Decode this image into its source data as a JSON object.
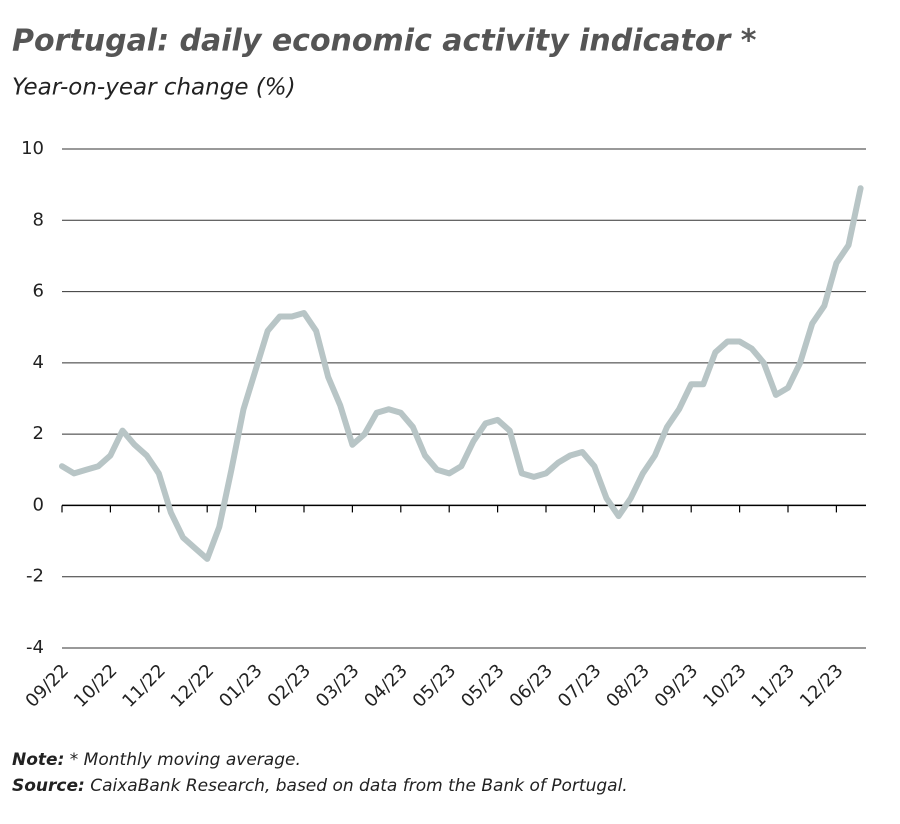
{
  "chart_data": {
    "type": "line",
    "title": "Portugal: daily economic activity indicator *",
    "subtitle": "Year-on-year change (%)",
    "categories": [
      "09/22",
      null,
      null,
      null,
      "10/22",
      null,
      null,
      null,
      "11/22",
      null,
      null,
      null,
      "12/22",
      null,
      null,
      null,
      "01/23",
      null,
      null,
      null,
      "02/23",
      null,
      null,
      null,
      "03/23",
      null,
      null,
      null,
      "04/23",
      null,
      null,
      null,
      "05/23",
      null,
      null,
      null,
      "05/23",
      null,
      null,
      null,
      "06/23",
      null,
      null,
      null,
      "07/23",
      null,
      null,
      null,
      "08/23",
      null,
      null,
      null,
      "09/23",
      null,
      null,
      null,
      "10/23",
      null,
      null,
      null,
      "11/23",
      null,
      null,
      null,
      "12/23",
      null,
      null
    ],
    "series": [
      {
        "color": "#b8c5c6",
        "values": [
          1.1,
          0.9,
          1.0,
          1.1,
          1.4,
          2.1,
          1.7,
          1.4,
          0.9,
          -0.2,
          -0.9,
          -1.2,
          -1.5,
          -0.6,
          1.0,
          2.7,
          3.8,
          4.9,
          5.3,
          5.3,
          5.4,
          4.9,
          3.6,
          2.8,
          1.7,
          2.0,
          2.6,
          2.7,
          2.6,
          2.2,
          1.4,
          1.0,
          0.9,
          1.1,
          1.8,
          2.3,
          2.4,
          2.1,
          0.9,
          0.8,
          0.9,
          1.2,
          1.4,
          1.5,
          1.1,
          0.2,
          -0.3,
          0.2,
          0.9,
          1.4,
          2.2,
          2.7,
          3.4,
          3.4,
          4.3,
          4.6,
          4.6,
          4.4,
          4.0,
          3.1,
          3.3,
          4.0,
          5.1,
          5.6,
          6.8,
          7.3,
          8.9
        ]
      }
    ],
    "ylim": [
      -4,
      10
    ],
    "yticks": [
      -4,
      -2,
      0,
      2,
      4,
      6,
      8,
      10
    ],
    "grid": true,
    "note": {
      "label": "Note:",
      "text": " * Monthly moving average."
    },
    "source": {
      "label": "Source:",
      "text": " CaixaBank Research, based on data from the Bank of Portugal."
    }
  }
}
